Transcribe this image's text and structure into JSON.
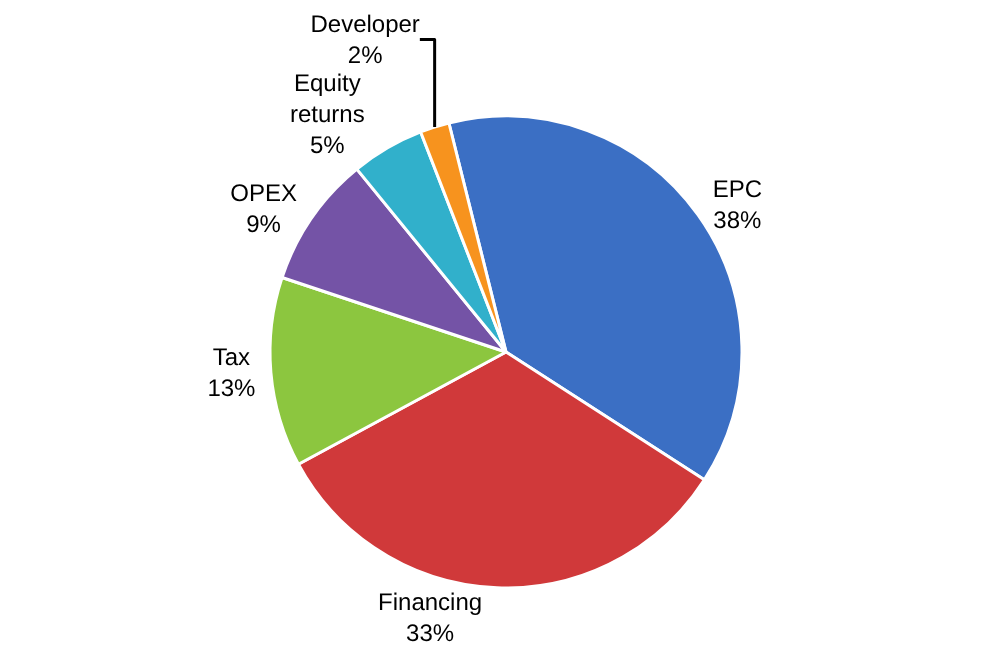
{
  "chart_data": {
    "type": "pie",
    "categories": [
      "EPC",
      "Financing",
      "Tax",
      "OPEX",
      "Equity returns",
      "Developer"
    ],
    "values": [
      38,
      33,
      13,
      9,
      5,
      2
    ],
    "value_labels": [
      "38%",
      "33%",
      "13%",
      "9%",
      "5%",
      "2%"
    ],
    "colors": [
      "#3b6fc4",
      "#d0393a",
      "#8cc63f",
      "#7453a6",
      "#31b0cb",
      "#f7931e"
    ],
    "legend": false
  }
}
